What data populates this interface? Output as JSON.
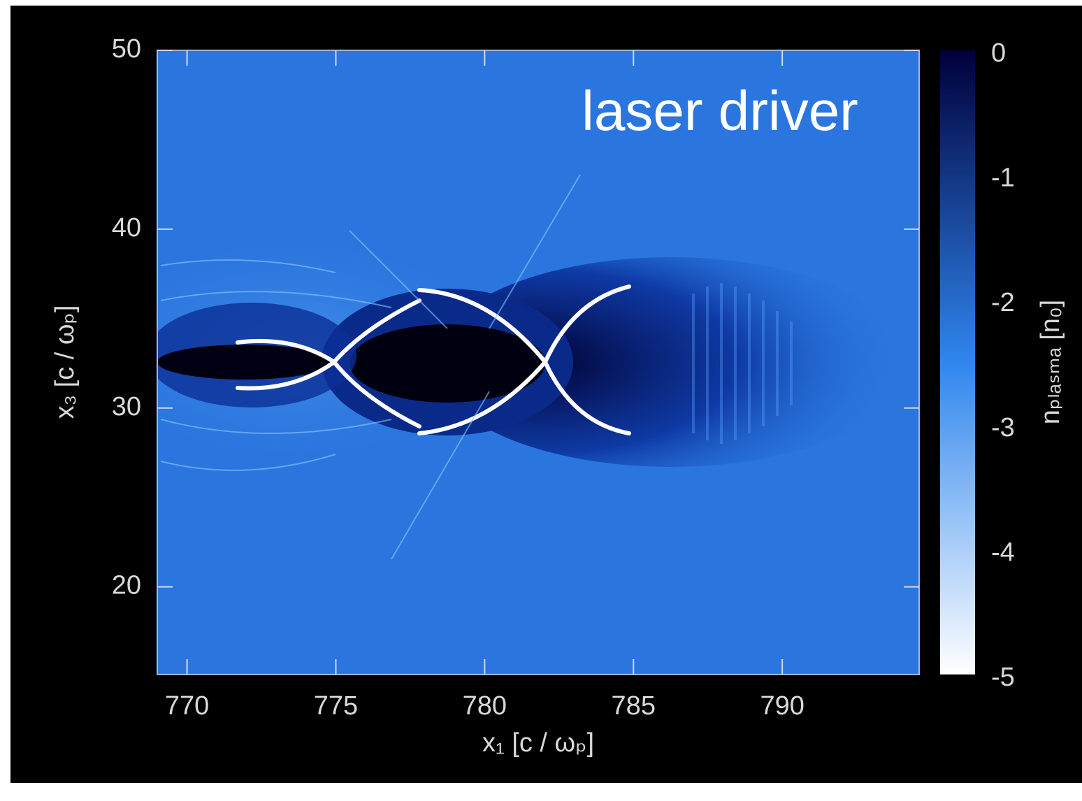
{
  "chart_data": {
    "type": "heatmap",
    "annotation": "laser driver",
    "x_label": "x₁ [c / ωₚ]",
    "y_label": "x₃ [c / ωₚ]",
    "xlim": [
      769,
      794.6
    ],
    "ylim": [
      15.1,
      50
    ],
    "xticks": [
      770,
      775,
      780,
      785,
      790
    ],
    "yticks": [
      20,
      30,
      40,
      50
    ],
    "colorbar": {
      "label": "nₚₗₐₛₘₐ [n₀]",
      "lim": [
        -5,
        0
      ],
      "ticks": [
        0,
        -1,
        -2,
        -3,
        -4,
        -5
      ],
      "colors": [
        "#ffffff",
        "#2f86ee",
        "#00003a"
      ]
    }
  }
}
